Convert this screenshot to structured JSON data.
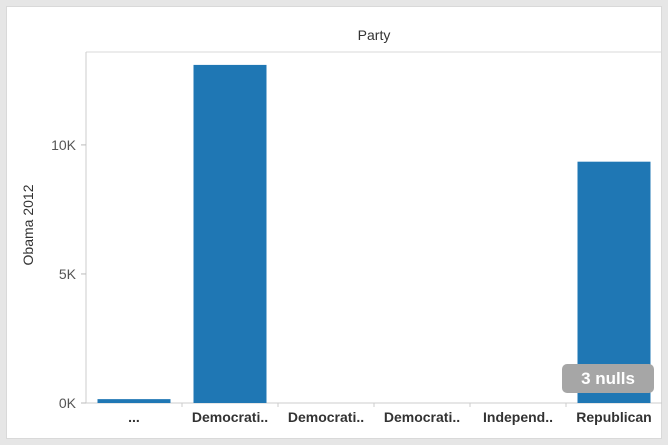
{
  "chart_data": {
    "type": "bar",
    "header": "Party",
    "ylabel": "Obama 2012",
    "categories": [
      "...",
      "Democrati..",
      "Democrati..",
      "Democrati..",
      "Independ..",
      "Republican"
    ],
    "values": [
      150,
      13100,
      0,
      0,
      0,
      9350
    ],
    "yticks": [
      {
        "value": 0,
        "label": "0K"
      },
      {
        "value": 5000,
        "label": "5K"
      },
      {
        "value": 10000,
        "label": "10K"
      }
    ],
    "ylim": [
      0,
      13600
    ],
    "bar_color": "#1f77b4",
    "nulls_indicator": "3 nulls",
    "grid": false
  }
}
